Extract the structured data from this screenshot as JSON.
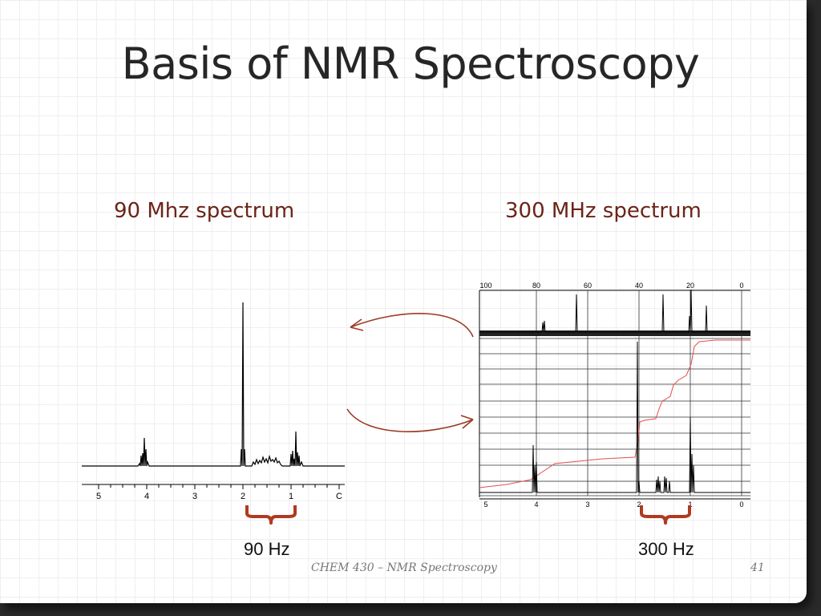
{
  "slide": {
    "title": "Basis of NMR Spectroscopy",
    "left_label": "90 Mhz spectrum",
    "right_label": "300 MHz spectrum",
    "left_hz": "90 Hz",
    "right_hz": "300 Hz",
    "footer": "CHEM 430 – NMR Spectroscopy",
    "page_number": "41"
  },
  "colors": {
    "title": "#262626",
    "label": "#6b2418",
    "arrow": "#9b3a24",
    "brace": "#b03a20",
    "integral": "#e05050"
  },
  "spectrum_90": {
    "axis_ticks": [
      "5",
      "4",
      "3",
      "2",
      "1",
      "C"
    ]
  },
  "spectrum_300": {
    "top_axis_ticks": [
      "100",
      "80",
      "60",
      "40",
      "20",
      "0"
    ],
    "bottom_axis_ticks": [
      "5",
      "4",
      "3",
      "2",
      "1",
      "0"
    ]
  }
}
